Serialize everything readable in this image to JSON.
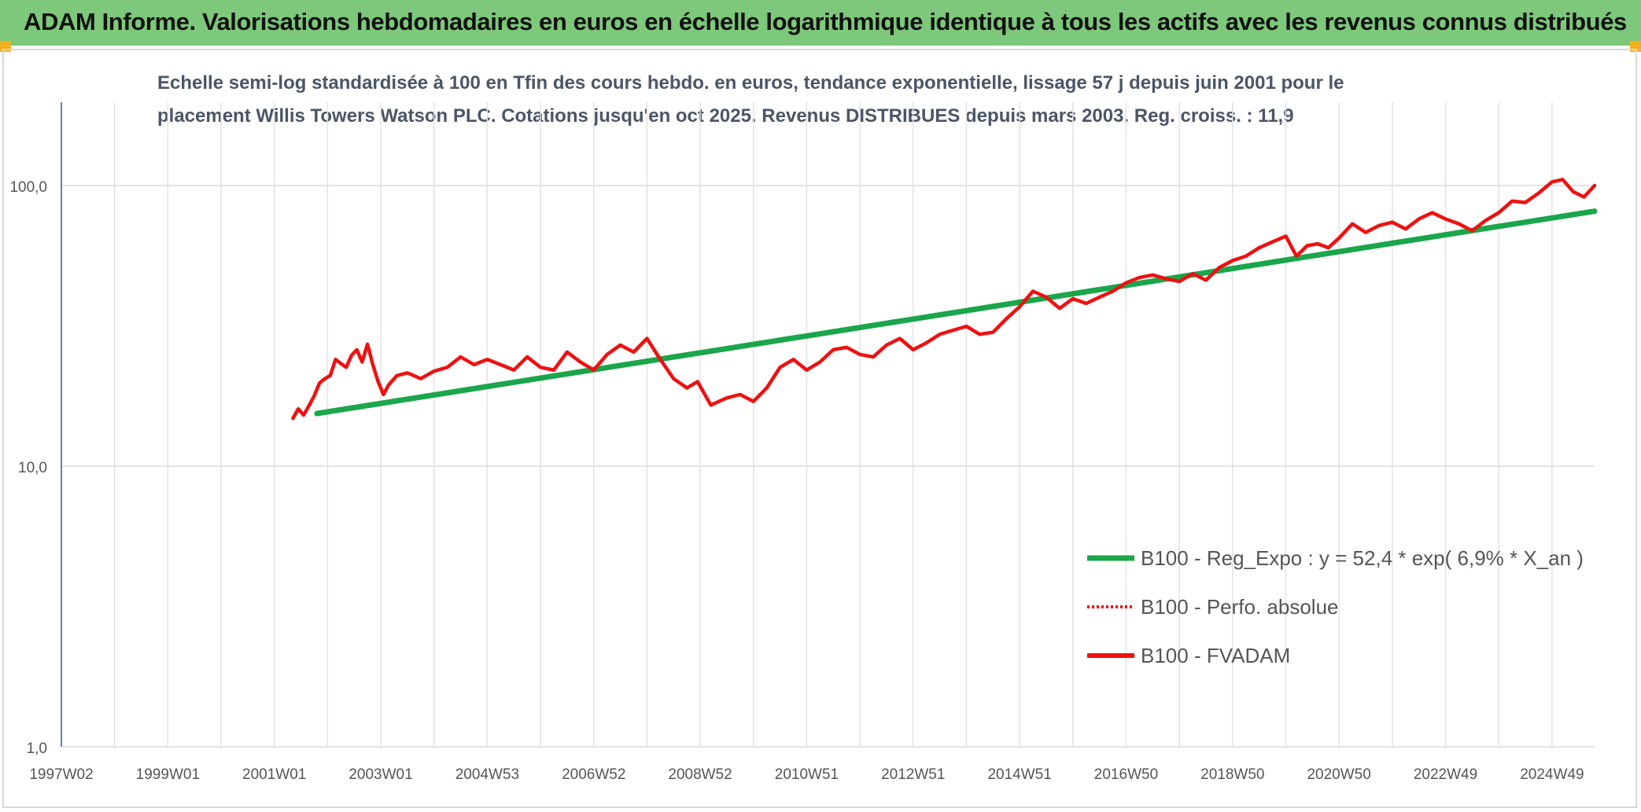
{
  "header": {
    "title": "ADAM Informe. Valorisations hebdomadaires en euros en échelle logarithmique identique à tous les actifs avec les revenus connus distribués"
  },
  "colors": {
    "header_bg": "#7dc87a",
    "corner": "#f2b21b",
    "trend": "#1aa64a",
    "fvadam": "#ee1111",
    "perfo": "#ee1111",
    "axis_line": "#2e5fa3"
  },
  "chart_data": {
    "type": "line",
    "title_line1": "Echelle semi-log standardisée à 100 en Tfin des cours hebdo. en euros, tendance exponentielle, lissage 57 j depuis juin 2001 pour le",
    "title_line2": "placement Willis Towers Watson PLC. Cotations jusqu'en oct 2025. Revenus DISTRIBUES depuis mars 2003. Reg. croiss. : 11,9",
    "y_scale": "log",
    "ylim": [
      1,
      200
    ],
    "y_ticks": [
      1,
      10,
      100
    ],
    "y_tick_labels": [
      "1,0",
      "10,0",
      "100,0"
    ],
    "x_ticks": [
      "1997W02",
      "1999W01",
      "2001W01",
      "2003W01",
      "2004W53",
      "2006W52",
      "2008W52",
      "2010W51",
      "2012W51",
      "2014W51",
      "2016W50",
      "2018W50",
      "2020W50",
      "2022W49",
      "2024W49"
    ],
    "x_tick_years": [
      1997.0,
      1999.0,
      2001.0,
      2003.0,
      2005.0,
      2007.0,
      2009.0,
      2011.0,
      2013.0,
      2015.0,
      2017.0,
      2019.0,
      2021.0,
      2023.0,
      2025.0
    ],
    "xlim": [
      1997.0,
      2025.8
    ],
    "grid": true,
    "legend_position": "bottom-right",
    "series": [
      {
        "name": "B100 - Reg_Expo : y = 52,4 * exp( 6,9% *  X_an )",
        "style": "solid",
        "color": "#1aa64a",
        "x": [
          2001.8,
          2025.8
        ],
        "y": [
          15.4,
          81.0
        ]
      },
      {
        "name": "B100 - Perfo. absolue",
        "style": "dotted",
        "color": "#ee1111",
        "x": [],
        "y": []
      },
      {
        "name": "B100 - FVADAM",
        "style": "solid",
        "color": "#ee1111",
        "x": [
          2001.35,
          2001.45,
          2001.55,
          2001.65,
          2001.75,
          2001.85,
          2001.95,
          2002.05,
          2002.15,
          2002.25,
          2002.35,
          2002.45,
          2002.55,
          2002.65,
          2002.75,
          2002.85,
          2002.95,
          2003.05,
          2003.15,
          2003.3,
          2003.5,
          2003.75,
          2004.0,
          2004.25,
          2004.5,
          2004.75,
          2005.0,
          2005.25,
          2005.5,
          2005.75,
          2006.0,
          2006.25,
          2006.5,
          2006.75,
          2007.0,
          2007.25,
          2007.5,
          2007.75,
          2008.0,
          2008.25,
          2008.5,
          2008.75,
          2008.95,
          2009.2,
          2009.5,
          2009.75,
          2010.0,
          2010.25,
          2010.5,
          2010.75,
          2011.0,
          2011.25,
          2011.5,
          2011.75,
          2012.0,
          2012.25,
          2012.5,
          2012.75,
          2013.0,
          2013.25,
          2013.5,
          2013.75,
          2014.0,
          2014.25,
          2014.5,
          2014.75,
          2015.0,
          2015.25,
          2015.5,
          2015.75,
          2016.0,
          2016.25,
          2016.5,
          2016.75,
          2017.0,
          2017.25,
          2017.5,
          2017.75,
          2018.0,
          2018.25,
          2018.5,
          2018.75,
          2019.0,
          2019.25,
          2019.5,
          2019.75,
          2020.0,
          2020.2,
          2020.4,
          2020.6,
          2020.8,
          2021.0,
          2021.25,
          2021.5,
          2021.75,
          2022.0,
          2022.25,
          2022.5,
          2022.75,
          2023.0,
          2023.25,
          2023.5,
          2023.75,
          2024.0,
          2024.25,
          2024.5,
          2024.75,
          2025.0,
          2025.2,
          2025.4,
          2025.6,
          2025.8
        ],
        "y": [
          14.8,
          16.0,
          15.2,
          16.4,
          17.8,
          19.8,
          20.5,
          21.0,
          24.0,
          23.2,
          22.5,
          24.8,
          26.0,
          23.5,
          27.2,
          23.0,
          20.0,
          18.0,
          19.5,
          21.0,
          21.5,
          20.5,
          21.8,
          22.5,
          24.5,
          23.0,
          24.0,
          23.0,
          22.0,
          24.5,
          22.5,
          22.0,
          25.5,
          23.5,
          22.0,
          25.0,
          27.0,
          25.5,
          28.5,
          24.0,
          20.5,
          19.0,
          20.0,
          16.5,
          17.5,
          18.0,
          17.0,
          19.0,
          22.5,
          24.0,
          22.0,
          23.5,
          26.0,
          26.5,
          25.0,
          24.5,
          27.0,
          28.5,
          26.0,
          27.5,
          29.5,
          30.5,
          31.5,
          29.5,
          30.0,
          33.5,
          37.0,
          42.0,
          40.0,
          36.5,
          39.5,
          38.0,
          40.0,
          42.0,
          45.0,
          47.0,
          48.0,
          46.5,
          45.5,
          48.5,
          46.0,
          51.0,
          54.0,
          56.0,
          60.0,
          63.0,
          66.0,
          56.0,
          61.0,
          62.0,
          60.0,
          65.0,
          73.0,
          68.0,
          72.0,
          74.0,
          70.0,
          76.0,
          80.0,
          76.0,
          73.0,
          69.0,
          75.0,
          80.0,
          88.0,
          87.0,
          94.0,
          103.0,
          105.0,
          95.0,
          91.0,
          100.0
        ]
      }
    ]
  }
}
